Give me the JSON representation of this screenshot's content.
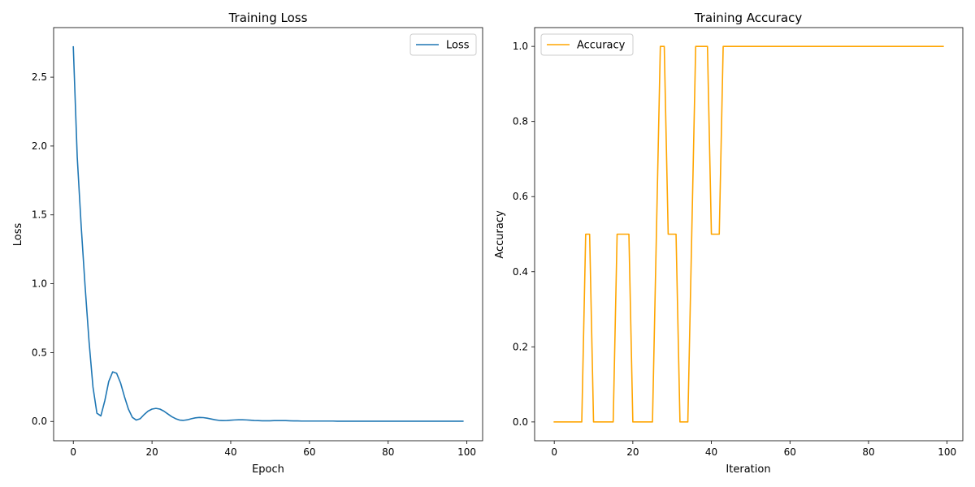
{
  "chart_data": [
    {
      "type": "line",
      "title": "Training Loss",
      "xlabel": "Epoch",
      "ylabel": "Loss",
      "xlim": [
        -5,
        104
      ],
      "ylim": [
        -0.14,
        2.86
      ],
      "xticks": [
        0,
        20,
        40,
        60,
        80,
        100
      ],
      "xtick_labels": [
        "0",
        "20",
        "40",
        "60",
        "80",
        "100"
      ],
      "yticks": [
        0.0,
        0.5,
        1.0,
        1.5,
        2.0,
        2.5
      ],
      "ytick_labels": [
        "0.0",
        "0.5",
        "1.0",
        "1.5",
        "2.0",
        "2.5"
      ],
      "grid": false,
      "legend": "top-right",
      "colors": {
        "Loss": "#1f77b4"
      },
      "series": [
        {
          "name": "Loss",
          "x": [
            0,
            1,
            2,
            3,
            4,
            5,
            6,
            7,
            8,
            9,
            10,
            11,
            12,
            13,
            14,
            15,
            16,
            17,
            18,
            19,
            20,
            21,
            22,
            23,
            24,
            25,
            26,
            27,
            28,
            29,
            30,
            31,
            32,
            33,
            34,
            35,
            36,
            37,
            38,
            39,
            40,
            41,
            42,
            43,
            44,
            45,
            46,
            47,
            48,
            49,
            50,
            51,
            52,
            53,
            54,
            55,
            56,
            57,
            58,
            59,
            60,
            61,
            62,
            63,
            64,
            65,
            66,
            67,
            68,
            69,
            70,
            71,
            72,
            73,
            74,
            75,
            76,
            77,
            78,
            79,
            80,
            81,
            82,
            83,
            84,
            85,
            86,
            87,
            88,
            89,
            90,
            91,
            92,
            93,
            94,
            95,
            96,
            97,
            98,
            99
          ],
          "values": [
            2.72,
            1.92,
            1.42,
            0.98,
            0.58,
            0.25,
            0.06,
            0.04,
            0.15,
            0.29,
            0.36,
            0.35,
            0.28,
            0.18,
            0.09,
            0.03,
            0.01,
            0.02,
            0.05,
            0.075,
            0.09,
            0.095,
            0.09,
            0.075,
            0.055,
            0.035,
            0.02,
            0.01,
            0.008,
            0.012,
            0.02,
            0.026,
            0.029,
            0.028,
            0.024,
            0.018,
            0.012,
            0.008,
            0.006,
            0.007,
            0.009,
            0.011,
            0.012,
            0.012,
            0.011,
            0.009,
            0.007,
            0.006,
            0.005,
            0.005,
            0.005,
            0.006,
            0.006,
            0.006,
            0.006,
            0.005,
            0.004,
            0.004,
            0.003,
            0.003,
            0.003,
            0.003,
            0.003,
            0.003,
            0.003,
            0.003,
            0.003,
            0.002,
            0.002,
            0.002,
            0.002,
            0.002,
            0.002,
            0.002,
            0.002,
            0.002,
            0.002,
            0.002,
            0.002,
            0.002,
            0.002,
            0.002,
            0.002,
            0.002,
            0.002,
            0.002,
            0.002,
            0.002,
            0.002,
            0.002,
            0.002,
            0.002,
            0.002,
            0.002,
            0.002,
            0.002,
            0.002,
            0.002,
            0.002,
            0.002
          ]
        }
      ]
    },
    {
      "type": "line",
      "title": "Training Accuracy",
      "xlabel": "Iteration",
      "ylabel": "Accuracy",
      "xlim": [
        -5,
        104
      ],
      "ylim": [
        -0.05,
        1.05
      ],
      "xticks": [
        0,
        20,
        40,
        60,
        80,
        100
      ],
      "xtick_labels": [
        "0",
        "20",
        "40",
        "60",
        "80",
        "100"
      ],
      "yticks": [
        0.0,
        0.2,
        0.4,
        0.6,
        0.8,
        1.0
      ],
      "ytick_labels": [
        "0.0",
        "0.2",
        "0.4",
        "0.6",
        "0.8",
        "1.0"
      ],
      "grid": false,
      "legend": "top-left",
      "colors": {
        "Accuracy": "#ffa500"
      },
      "series": [
        {
          "name": "Accuracy",
          "x": [
            0,
            1,
            2,
            3,
            4,
            5,
            6,
            7,
            8,
            9,
            10,
            11,
            12,
            13,
            14,
            15,
            16,
            17,
            18,
            19,
            20,
            21,
            22,
            23,
            24,
            25,
            26,
            27,
            28,
            29,
            30,
            31,
            32,
            33,
            34,
            35,
            36,
            37,
            38,
            39,
            40,
            41,
            42,
            43,
            44,
            45,
            46,
            47,
            48,
            49,
            50,
            51,
            52,
            53,
            54,
            55,
            56,
            57,
            58,
            59,
            60,
            61,
            62,
            63,
            64,
            65,
            66,
            67,
            68,
            69,
            70,
            71,
            72,
            73,
            74,
            75,
            76,
            77,
            78,
            79,
            80,
            81,
            82,
            83,
            84,
            85,
            86,
            87,
            88,
            89,
            90,
            91,
            92,
            93,
            94,
            95,
            96,
            97,
            98,
            99
          ],
          "values": [
            0,
            0,
            0,
            0,
            0,
            0,
            0,
            0,
            0.5,
            0.5,
            0,
            0,
            0,
            0,
            0,
            0,
            0.5,
            0.5,
            0.5,
            0.5,
            0,
            0,
            0,
            0,
            0,
            0,
            0.5,
            1,
            1,
            0.5,
            0.5,
            0.5,
            0,
            0,
            0,
            0.5,
            1,
            1,
            1,
            1,
            0.5,
            0.5,
            0.5,
            1,
            1,
            1,
            1,
            1,
            1,
            1,
            1,
            1,
            1,
            1,
            1,
            1,
            1,
            1,
            1,
            1,
            1,
            1,
            1,
            1,
            1,
            1,
            1,
            1,
            1,
            1,
            1,
            1,
            1,
            1,
            1,
            1,
            1,
            1,
            1,
            1,
            1,
            1,
            1,
            1,
            1,
            1,
            1,
            1,
            1,
            1,
            1,
            1,
            1,
            1,
            1,
            1,
            1,
            1,
            1,
            1
          ]
        }
      ]
    }
  ]
}
